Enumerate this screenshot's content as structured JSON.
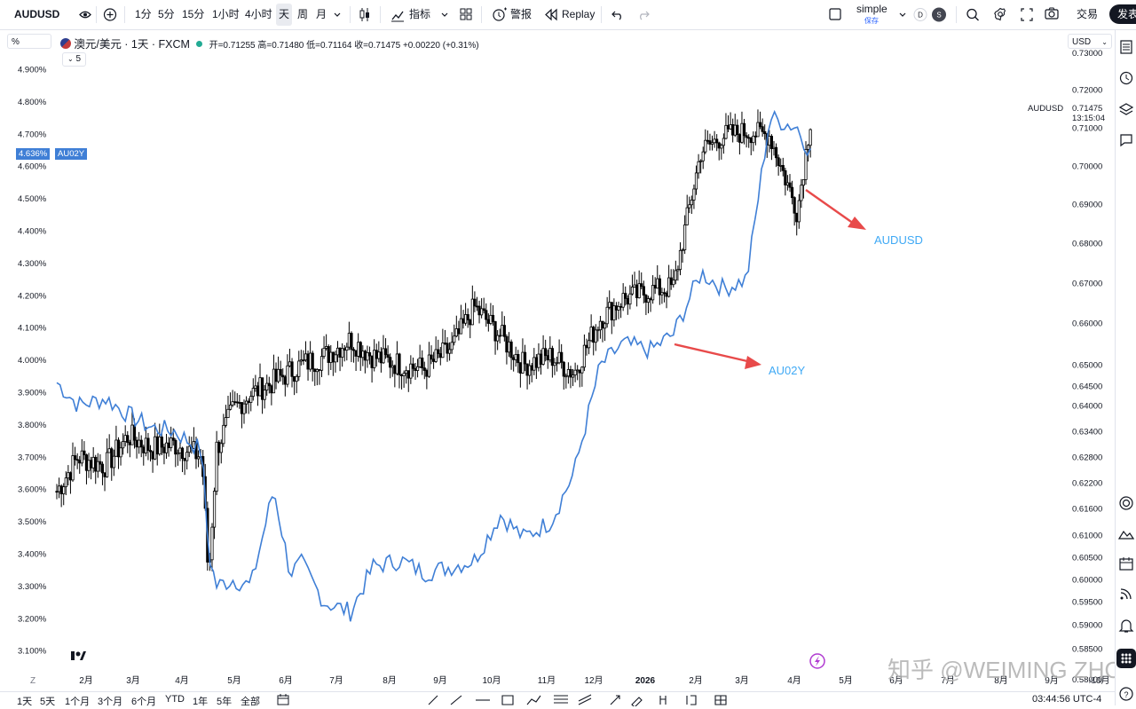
{
  "toolbar": {
    "symbol": "AUDUSD",
    "intervals": [
      "1分",
      "5分",
      "15分",
      "1小时",
      "4小时",
      "天",
      "周",
      "月"
    ],
    "active_interval": "天",
    "indicators": "指标",
    "alert": "警报",
    "replay": "Replay",
    "layout_name": "simple",
    "layout_saved": "保存",
    "trade": "交易",
    "publish": "发表"
  },
  "legend": {
    "title": "澳元/美元 · 1天 · FXCM",
    "open_label": "开=0.71255",
    "high_label": "高=0.71480",
    "low_label": "低=0.71164",
    "close_label": "收=0.71475",
    "change": "+0.00220 (+0.31%)",
    "hidden_count": "5"
  },
  "left_scale": {
    "unit_selector": "%",
    "ticks": [
      "4.900%",
      "4.800%",
      "4.700%",
      "4.600%",
      "4.500%",
      "4.400%",
      "4.300%",
      "4.200%",
      "4.100%",
      "4.000%",
      "3.900%",
      "3.800%",
      "3.700%",
      "3.600%",
      "3.500%",
      "3.400%",
      "3.300%",
      "3.200%",
      "3.100%"
    ],
    "current_value": "4.636%",
    "current_symbol": "AU02Y"
  },
  "right_scale": {
    "currency": "USD",
    "ticks": [
      "0.72000",
      "0.71000",
      "0.70000",
      "0.69000",
      "0.68000",
      "0.67000",
      "0.66000",
      "0.65000",
      "0.64500",
      "0.64000",
      "0.63400",
      "0.62800",
      "0.62200",
      "0.61600",
      "0.61000",
      "0.60500",
      "0.60000",
      "0.59500",
      "0.59000",
      "0.58500"
    ],
    "top_partial": "0.73000",
    "bottom_partial": "0.58000",
    "price_label_symbol": "AUDUSD",
    "price_label_value": "0.71475",
    "countdown": "13:15:04"
  },
  "time_axis": {
    "labels": [
      "2月",
      "3月",
      "4月",
      "5月",
      "6月",
      "7月",
      "8月",
      "9月",
      "10月",
      "11月",
      "12月",
      "2026",
      "2月",
      "3月",
      "4月",
      "5月",
      "6月",
      "7月",
      "8月",
      "9月",
      "10月"
    ]
  },
  "annotations": {
    "audusd": "AUDUSD",
    "au02y": "AU02Y",
    "watermark": "知乎 @WEIMING ZHOU",
    "logo": "TV"
  },
  "bottom": {
    "ranges": [
      "1天",
      "5天",
      "1个月",
      "3个月",
      "6个月",
      "YTD",
      "1年",
      "5年",
      "全部"
    ],
    "clock": "03:44:56 UTC-4"
  },
  "colors": {
    "audusd_candles": "#000000",
    "au02y_line": "#3f7fd6",
    "annotation_blue": "#3fa9f5",
    "arrow_red": "#e84a4a",
    "watermark": "#b0b0b0"
  },
  "chart_data": [
    {
      "type": "line",
      "name": "AU02Y",
      "x": [
        "2025-01-02",
        "2025-01-15",
        "2025-02-01",
        "2025-02-15",
        "2025-03-01",
        "2025-03-15",
        "2025-04-01",
        "2025-04-05",
        "2025-04-10",
        "2025-04-20",
        "2025-05-01",
        "2025-05-15",
        "2025-05-25",
        "2025-06-01",
        "2025-06-15",
        "2025-07-01",
        "2025-07-15",
        "2025-08-01",
        "2025-08-15",
        "2025-09-01",
        "2025-09-15",
        "2025-10-01",
        "2025-10-15",
        "2025-11-01",
        "2025-11-15",
        "2025-12-01",
        "2025-12-15",
        "2026-01-01",
        "2026-01-15",
        "2026-02-01",
        "2026-02-15",
        "2026-03-01",
        "2026-03-15",
        "2026-04-01",
        "2026-04-10"
      ],
      "values": [
        3.93,
        3.86,
        3.88,
        3.83,
        3.79,
        3.78,
        3.72,
        3.4,
        3.3,
        3.32,
        3.3,
        3.6,
        3.34,
        3.37,
        3.25,
        3.22,
        3.36,
        3.38,
        3.34,
        3.36,
        3.38,
        3.52,
        3.45,
        3.5,
        3.65,
        3.98,
        4.05,
        4.03,
        4.08,
        4.27,
        4.22,
        4.25,
        4.75,
        4.72,
        4.63
      ],
      "ylim": [
        3.05,
        4.95
      ]
    },
    {
      "type": "candlestick",
      "name": "AUDUSD",
      "x": [
        "2025-01-02",
        "2025-01-15",
        "2025-02-01",
        "2025-02-15",
        "2025-03-01",
        "2025-03-15",
        "2025-04-01",
        "2025-04-05",
        "2025-04-10",
        "2025-04-20",
        "2025-05-01",
        "2025-05-15",
        "2025-06-01",
        "2025-06-15",
        "2025-07-01",
        "2025-07-15",
        "2025-08-01",
        "2025-08-15",
        "2025-09-01",
        "2025-09-15",
        "2025-10-01",
        "2025-10-15",
        "2025-11-01",
        "2025-11-15",
        "2025-12-01",
        "2025-12-15",
        "2026-01-01",
        "2026-01-15",
        "2026-02-01",
        "2026-02-15",
        "2026-03-01",
        "2026-03-15",
        "2026-04-01",
        "2026-04-10"
      ],
      "values": [
        0.62,
        0.628,
        0.626,
        0.633,
        0.63,
        0.631,
        0.628,
        0.6,
        0.63,
        0.639,
        0.643,
        0.646,
        0.65,
        0.652,
        0.656,
        0.652,
        0.65,
        0.649,
        0.654,
        0.664,
        0.657,
        0.65,
        0.652,
        0.648,
        0.661,
        0.666,
        0.668,
        0.669,
        0.704,
        0.708,
        0.709,
        0.708,
        0.688,
        0.715
      ],
      "ylim": [
        0.58,
        0.73
      ]
    }
  ]
}
